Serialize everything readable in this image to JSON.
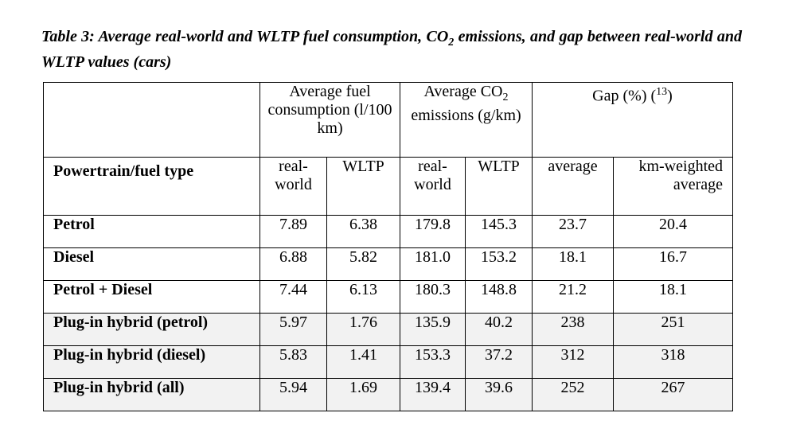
{
  "caption": {
    "prefix": "Table 3: Average real-world and WLTP fuel consumption, CO",
    "sub": "2",
    "suffix": " emissions, and gap between real-world and WLTP values (cars)"
  },
  "headers": {
    "fuel": "Average fuel consumption (l/100 km)",
    "co2_prefix": "Average CO",
    "co2_sub": "2",
    "co2_suffix": " emissions (g/km)",
    "gap_prefix": "Gap (%) (",
    "gap_sup": "13",
    "gap_suffix": ")",
    "powertrain": "Powertrain/fuel type",
    "real_world": "real-world",
    "wltp": "WLTP",
    "average": "average",
    "km_weighted": "km-weighted average"
  },
  "rows": [
    {
      "type": "Petrol",
      "fuel_real": "7.89",
      "fuel_wltp": "6.38",
      "co2_real": "179.8",
      "co2_wltp": "145.3",
      "gap_avg": "23.7",
      "gap_km": "20.4"
    },
    {
      "type": "Diesel",
      "fuel_real": "6.88",
      "fuel_wltp": "5.82",
      "co2_real": "181.0",
      "co2_wltp": "153.2",
      "gap_avg": "18.1",
      "gap_km": "16.7"
    },
    {
      "type": "Petrol + Diesel",
      "fuel_real": "7.44",
      "fuel_wltp": "6.13",
      "co2_real": "180.3",
      "co2_wltp": "148.8",
      "gap_avg": "21.2",
      "gap_km": "18.1"
    },
    {
      "type": "Plug-in hybrid (petrol)",
      "fuel_real": "5.97",
      "fuel_wltp": "1.76",
      "co2_real": "135.9",
      "co2_wltp": "40.2",
      "gap_avg": "238",
      "gap_km": "251"
    },
    {
      "type": "Plug-in hybrid (diesel)",
      "fuel_real": "5.83",
      "fuel_wltp": "1.41",
      "co2_real": "153.3",
      "co2_wltp": "37.2",
      "gap_avg": "312",
      "gap_km": "318"
    },
    {
      "type": "Plug-in hybrid (all)",
      "fuel_real": "5.94",
      "fuel_wltp": "1.69",
      "co2_real": "139.4",
      "co2_wltp": "39.6",
      "gap_avg": "252",
      "gap_km": "267"
    }
  ]
}
